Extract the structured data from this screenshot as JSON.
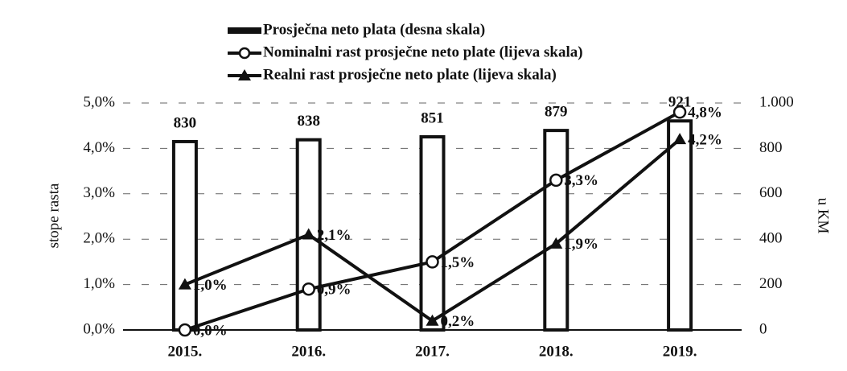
{
  "chart_data": {
    "type": "bar",
    "categories": [
      "2015.",
      "2016.",
      "2017.",
      "2018.",
      "2019."
    ],
    "series": [
      {
        "name": "Prosječna neto plata (desna skala)",
        "type": "bar",
        "axis": "y2",
        "color": "#111111",
        "values": [
          830,
          838,
          851,
          879,
          921
        ]
      },
      {
        "name": "Nominalni rast prosječne neto plate (lijeva skala)",
        "type": "line",
        "marker": "circle",
        "axis": "y",
        "color": "#111111",
        "values": [
          0.0,
          0.9,
          1.5,
          3.3,
          4.8
        ],
        "value_labels": [
          "0,0%",
          "0,9%",
          "1,5%",
          "3,3%",
          "4,8%"
        ]
      },
      {
        "name": "Realni rast prosječne neto plate (lijeva skala)",
        "type": "line",
        "marker": "triangle",
        "axis": "y",
        "color": "#111111",
        "values": [
          1.0,
          2.1,
          0.2,
          1.9,
          4.2
        ],
        "value_labels": [
          "1,0%",
          "2,1%",
          "0,2%",
          "1,9%",
          "4,2%"
        ]
      }
    ],
    "ylabel": "stope rasta",
    "y2label": "u KM",
    "ylim": [
      0,
      5
    ],
    "yticks": [
      {
        "value": 0,
        "label": "0,0%"
      },
      {
        "value": 1,
        "label": "1,0%"
      },
      {
        "value": 2,
        "label": "2,0%"
      },
      {
        "value": 3,
        "label": "3,0%"
      },
      {
        "value": 4,
        "label": "4,0%"
      },
      {
        "value": 5,
        "label": "5,0%"
      }
    ],
    "y2lim": [
      0,
      1000
    ],
    "y2ticks": [
      0,
      200,
      400,
      600,
      800,
      {
        "value": 1000,
        "label": "1.000"
      }
    ],
    "grid": true
  }
}
